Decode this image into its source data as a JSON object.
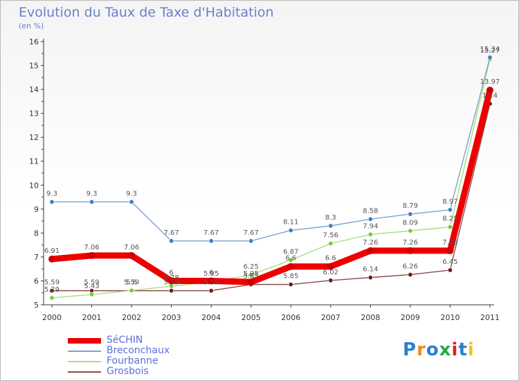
{
  "chart_data": {
    "type": "line",
    "title": "Evolution du Taux de Taxe d'Habitation",
    "subtitle": "(en %)",
    "xlabel": "",
    "ylabel": "",
    "x": [
      "2000",
      "2001",
      "2002",
      "2003",
      "2004",
      "2005",
      "2006",
      "2007",
      "2008",
      "2009",
      "2010",
      "2011"
    ],
    "ylim": [
      5,
      16
    ],
    "yticks": [
      5,
      6,
      7,
      8,
      9,
      10,
      11,
      12,
      13,
      14,
      15,
      16
    ],
    "grid": false,
    "legend_position": "bottom-left",
    "series": [
      {
        "name": "SéCHIN",
        "color": "#ee0000",
        "marker": "#cc0000",
        "values": [
          6.91,
          7.06,
          7.06,
          6.0,
          6.0,
          5.95,
          6.6,
          6.6,
          7.26,
          7.26,
          7.26,
          13.97
        ],
        "labels": [
          "6.91",
          "7.06",
          "7.06",
          "6",
          "6",
          "5.95",
          "6.6",
          "6.6",
          "7.26",
          "7.26",
          "7.26",
          "13.97"
        ]
      },
      {
        "name": "Breconchaux",
        "color": "#7ba4cf",
        "marker": "#3d7fc4",
        "values": [
          9.3,
          9.3,
          9.3,
          7.67,
          7.67,
          7.67,
          8.11,
          8.3,
          8.58,
          8.79,
          8.97,
          15.34
        ],
        "labels": [
          "9.3",
          "9.3",
          "9.3",
          "7.67",
          "7.67",
          "7.67",
          "8.11",
          "8.3",
          "8.58",
          "8.79",
          "8.97",
          "15.34"
        ]
      },
      {
        "name": "Fourbanne",
        "color": "#a8e07a",
        "marker": "#77cc33",
        "values": [
          5.29,
          5.43,
          5.6,
          5.78,
          5.95,
          6.25,
          6.87,
          7.56,
          7.94,
          8.09,
          8.25,
          15.27
        ],
        "labels": [
          "5.29",
          "5.43",
          "5.6",
          "5.78",
          "5.95",
          "6.25",
          "6.87",
          "7.56",
          "7.94",
          "8.09",
          "8.25",
          "15.27"
        ]
      },
      {
        "name": "Grosbois",
        "color": "#8b4a4a",
        "marker": "#6b1a1a",
        "values": [
          5.59,
          5.59,
          5.59,
          5.59,
          5.59,
          5.85,
          5.85,
          6.02,
          6.14,
          6.26,
          6.45,
          13.4
        ],
        "labels": [
          "5.59",
          "5.59",
          "5.59",
          "5.59",
          "5.59",
          "5.85",
          "5.85",
          "6.02",
          "6.14",
          "6.26",
          "6.45",
          "13.4"
        ]
      }
    ]
  },
  "logo": {
    "text": "Proxiti",
    "colors": [
      "#2a7fd4",
      "#f08a1c",
      "#2a7fd4",
      "#22aa44",
      "#e02020",
      "#2a7fd4",
      "#f0c020"
    ]
  }
}
